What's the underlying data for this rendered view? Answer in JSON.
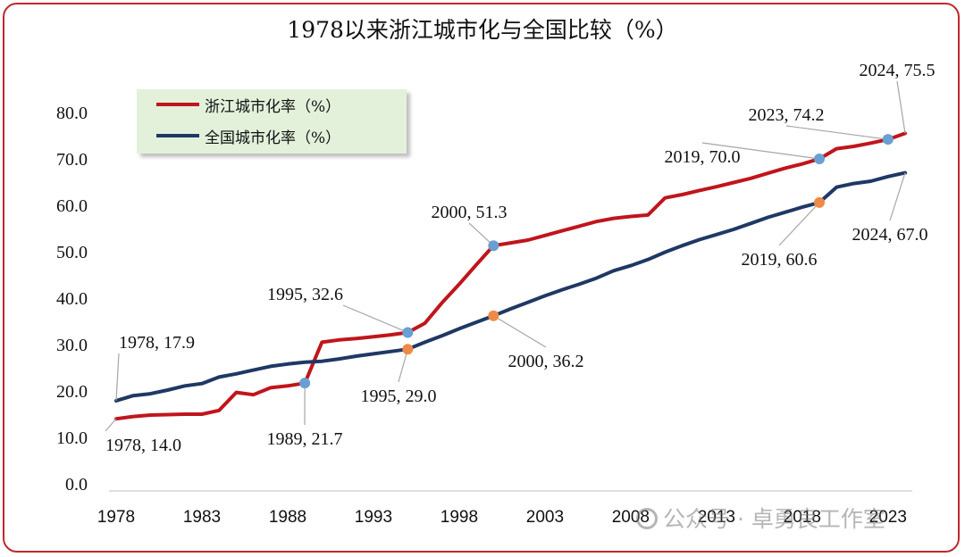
{
  "chart_data": {
    "type": "line",
    "title": "1978以来浙江城市化与全国比较（%）",
    "xlabel": "",
    "ylabel": "",
    "x": [
      1978,
      1979,
      1980,
      1981,
      1982,
      1983,
      1984,
      1985,
      1986,
      1987,
      1988,
      1989,
      1990,
      1991,
      1992,
      1993,
      1994,
      1995,
      1996,
      1997,
      1998,
      1999,
      2000,
      2001,
      2002,
      2003,
      2004,
      2005,
      2006,
      2007,
      2008,
      2009,
      2010,
      2011,
      2012,
      2013,
      2014,
      2015,
      2016,
      2017,
      2018,
      2019,
      2020,
      2021,
      2022,
      2023,
      2024
    ],
    "x_ticks": [
      "1978",
      "1983",
      "1988",
      "1993",
      "1998",
      "2003",
      "2008",
      "2013",
      "2018",
      "2023"
    ],
    "y_ticks": [
      "0.0",
      "10.0",
      "20.0",
      "30.0",
      "40.0",
      "50.0",
      "60.0",
      "70.0",
      "80.0"
    ],
    "ylim": [
      0,
      90
    ],
    "grid": false,
    "legend_position": "top-left",
    "series": [
      {
        "name": "浙江城市化率（%）",
        "color": "#c0151c",
        "values": [
          14.0,
          14.5,
          14.8,
          14.9,
          15.0,
          15.0,
          15.8,
          19.7,
          19.2,
          20.7,
          21.1,
          21.7,
          30.5,
          31.0,
          31.3,
          31.7,
          32.1,
          32.6,
          34.6,
          39.0,
          43.0,
          47.2,
          51.3,
          51.9,
          52.5,
          53.5,
          54.5,
          55.5,
          56.5,
          57.2,
          57.6,
          57.9,
          61.6,
          62.3,
          63.2,
          64.0,
          64.9,
          65.8,
          66.9,
          68.0,
          68.9,
          70.0,
          72.2,
          72.7,
          73.4,
          74.2,
          75.5
        ]
      },
      {
        "name": "全国城市化率（%）",
        "color": "#1f3864",
        "values": [
          17.9,
          19.0,
          19.4,
          20.2,
          21.1,
          21.6,
          23.0,
          23.7,
          24.5,
          25.3,
          25.8,
          26.2,
          26.4,
          26.9,
          27.5,
          28.0,
          28.5,
          29.0,
          30.5,
          31.9,
          33.4,
          34.8,
          36.2,
          37.7,
          39.1,
          40.5,
          41.8,
          43.0,
          44.3,
          45.9,
          47.0,
          48.3,
          49.9,
          51.3,
          52.6,
          53.7,
          54.8,
          56.1,
          57.4,
          58.5,
          59.6,
          60.6,
          63.9,
          64.7,
          65.2,
          66.2,
          67.0
        ]
      }
    ],
    "annotations": [
      {
        "series": 0,
        "year": 1978,
        "label": "1978, 14.0",
        "marker": false
      },
      {
        "series": 1,
        "year": 1978,
        "label": "1978, 17.9",
        "marker": false
      },
      {
        "series": 0,
        "year": 1989,
        "label": "1989, 21.7",
        "marker": true,
        "marker_color": "#6a9fd4"
      },
      {
        "series": 0,
        "year": 1995,
        "label": "1995, 32.6",
        "marker": true,
        "marker_color": "#6a9fd4"
      },
      {
        "series": 1,
        "year": 1995,
        "label": "1995, 29.0",
        "marker": true,
        "marker_color": "#ee8a48"
      },
      {
        "series": 0,
        "year": 2000,
        "label": "2000, 51.3",
        "marker": true,
        "marker_color": "#6a9fd4"
      },
      {
        "series": 1,
        "year": 2000,
        "label": "2000, 36.2",
        "marker": true,
        "marker_color": "#ee8a48"
      },
      {
        "series": 0,
        "year": 2019,
        "label": "2019, 70.0",
        "marker": true,
        "marker_color": "#6a9fd4"
      },
      {
        "series": 1,
        "year": 2019,
        "label": "2019, 60.6",
        "marker": true,
        "marker_color": "#ee8a48"
      },
      {
        "series": 0,
        "year": 2023,
        "label": "2023, 74.2",
        "marker": true,
        "marker_color": "#6a9fd4"
      },
      {
        "series": 0,
        "year": 2024,
        "label": "2024, 75.5",
        "marker": false
      },
      {
        "series": 1,
        "year": 2024,
        "label": "2024, 67.0",
        "marker": false
      }
    ]
  },
  "watermark": {
    "text": "公众号 · 卓勇良工作室",
    "icon": "wechat-icon"
  }
}
